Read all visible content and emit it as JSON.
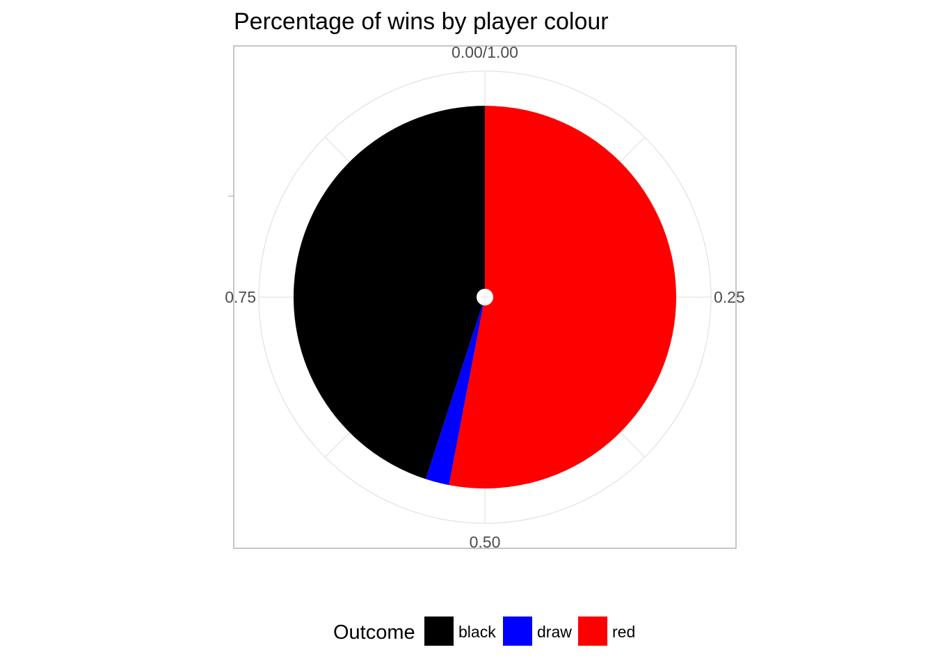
{
  "chart_data": {
    "type": "pie",
    "title": "Percentage of wins by player colour",
    "theta_ticks": [
      {
        "value": 0,
        "label": "0.00/1.00"
      },
      {
        "value": 0.25,
        "label": "0.25"
      },
      {
        "value": 0.5,
        "label": "0.50"
      },
      {
        "value": 0.75,
        "label": "0.75"
      }
    ],
    "legend_title": "Outcome",
    "legend_position": "bottom",
    "categories": [
      "black",
      "draw",
      "red"
    ],
    "values": [
      0.45,
      0.02,
      0.53
    ],
    "colors": {
      "black": "#000000",
      "draw": "#0000ff",
      "red": "#ff0000"
    },
    "grid": true
  }
}
